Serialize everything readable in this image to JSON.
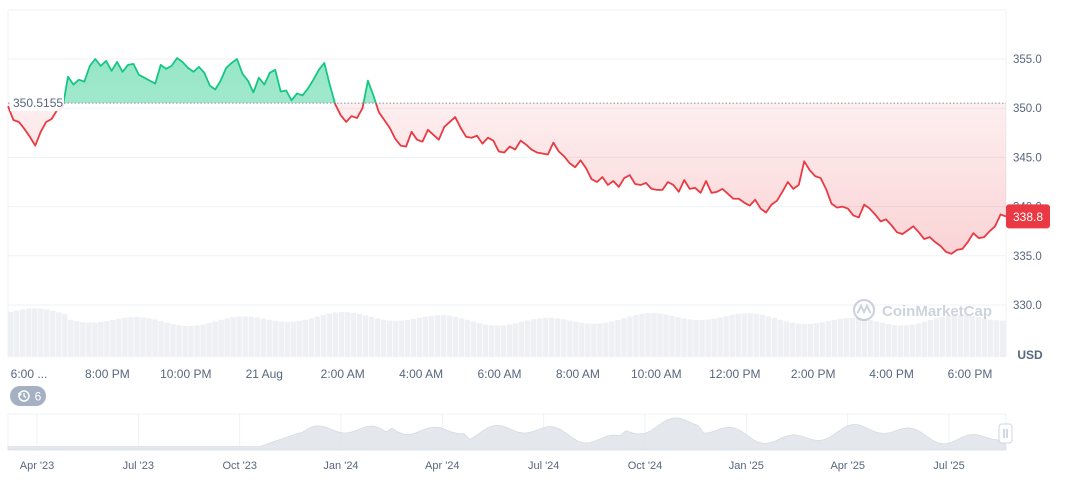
{
  "currency_label": "USD",
  "ref_price_label": "350.5155",
  "current_price_label": "338.8",
  "watermark": "CoinMarketCap",
  "badge_count": "6",
  "icons": {
    "history": "history-icon",
    "logo": "coinmarketcap-logo-icon",
    "handle": "range-handle-icon"
  },
  "colors": {
    "up": "#16c784",
    "down": "#ea3943",
    "grid": "#eff2f5",
    "text": "#58667e"
  },
  "chart_data": {
    "type": "line",
    "y_unit": "USD",
    "ylim": [
      328.5,
      358.5
    ],
    "yticks": [
      330.0,
      335.0,
      340.0,
      345.0,
      350.0,
      355.0
    ],
    "ytick_labels": [
      "330.0",
      "335.0",
      "340.0",
      "345.0",
      "350.0",
      "355.0"
    ],
    "reference_value": 350.5155,
    "x_ticks": [
      "6:00 ...",
      "8:00 PM",
      "10:00 PM",
      "21 Aug",
      "2:00 AM",
      "4:00 AM",
      "6:00 AM",
      "8:00 AM",
      "10:00 AM",
      "12:00 PM",
      "2:00 PM",
      "4:00 PM",
      "6:00 PM"
    ],
    "grid": "horizontal",
    "series": [
      {
        "values": [
          350.2,
          348.8,
          348.6,
          347.9,
          347.1,
          346.2,
          347.6,
          348.6,
          348.9,
          349.8,
          350.0,
          353.2,
          352.4,
          352.9,
          352.7,
          354.3,
          355.0,
          354.3,
          354.8,
          353.8,
          354.7,
          353.7,
          354.4,
          354.5,
          353.4,
          353.1,
          352.8,
          352.5,
          354.4,
          354.0,
          354.3,
          355.1,
          354.7,
          354.1,
          353.7,
          354.2,
          353.6,
          352.3,
          351.9,
          352.8,
          354.1,
          354.6,
          355.0,
          353.5,
          352.8,
          351.6,
          353.1,
          352.4,
          353.6,
          353.9,
          351.7,
          351.8,
          350.8,
          351.5,
          351.3,
          352.0,
          352.9,
          353.9,
          354.6,
          352.4,
          350.4,
          349.3,
          348.6,
          349.2,
          349.0,
          350.0,
          352.8,
          351.3,
          349.6,
          348.8,
          348.0,
          346.9,
          346.2,
          346.1,
          347.6,
          346.8,
          346.6,
          347.8,
          347.3,
          346.8,
          348.1,
          348.6,
          349.1,
          348.0,
          347.1,
          347.0,
          347.2,
          346.4,
          347.0,
          346.7,
          345.6,
          345.5,
          346.1,
          345.8,
          346.7,
          346.3,
          345.8,
          345.5,
          345.4,
          345.3,
          346.5,
          345.6,
          345.1,
          344.4,
          344.0,
          344.7,
          343.9,
          342.8,
          342.5,
          343.0,
          342.2,
          342.6,
          342.0,
          342.9,
          343.2,
          342.3,
          342.2,
          342.4,
          341.8,
          341.7,
          341.7,
          342.5,
          342.2,
          341.5,
          342.7,
          341.8,
          341.9,
          341.4,
          342.6,
          341.4,
          341.5,
          341.8,
          341.3,
          340.8,
          340.8,
          340.4,
          340.1,
          340.7,
          339.8,
          339.4,
          340.2,
          340.6,
          341.5,
          342.5,
          341.8,
          342.2,
          344.6,
          343.7,
          343.1,
          342.9,
          341.8,
          340.3,
          339.9,
          340.0,
          339.8,
          339.1,
          338.9,
          340.2,
          339.8,
          339.2,
          338.5,
          338.7,
          338.1,
          337.4,
          337.2,
          337.6,
          338.0,
          337.4,
          336.7,
          336.9,
          336.4,
          336.0,
          335.4,
          335.2,
          335.6,
          335.7,
          336.4,
          337.3,
          336.8,
          336.9,
          337.5,
          338.0,
          339.2,
          339.0
        ]
      }
    ],
    "navigator_x_ticks": [
      "Apr '23",
      "Jul '23",
      "Oct '23",
      "Jan '24",
      "Apr '24",
      "Jul '24",
      "Oct '24",
      "Jan '25",
      "Apr '25",
      "Jul '25"
    ]
  }
}
